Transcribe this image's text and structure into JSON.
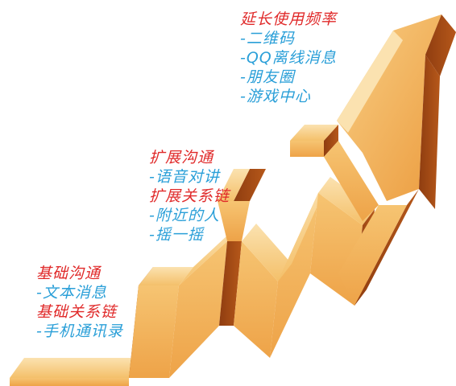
{
  "palette": {
    "heading": "#e02a2a",
    "item": "#2a9fd8",
    "stair_light": "#f6c472",
    "stair_mid": "#eea348",
    "stair_dark": "#b6581a",
    "stair_deep": "#8f3d10"
  },
  "stages": [
    {
      "groups": [
        {
          "heading": "基础沟通",
          "items": [
            "-文本消息"
          ]
        },
        {
          "heading": "基础关系链",
          "items": [
            "-手机通讯录"
          ]
        }
      ]
    },
    {
      "groups": [
        {
          "heading": "扩展沟通",
          "items": [
            "-语音对讲"
          ]
        },
        {
          "heading": "扩展关系链",
          "items": [
            "-附近的人",
            "-摇一摇"
          ]
        }
      ]
    },
    {
      "groups": [
        {
          "heading": "延长使用频率",
          "items": [
            "-二维码",
            "-QQ离线消息",
            "-朋友圈",
            "-游戏中心"
          ]
        }
      ]
    }
  ]
}
